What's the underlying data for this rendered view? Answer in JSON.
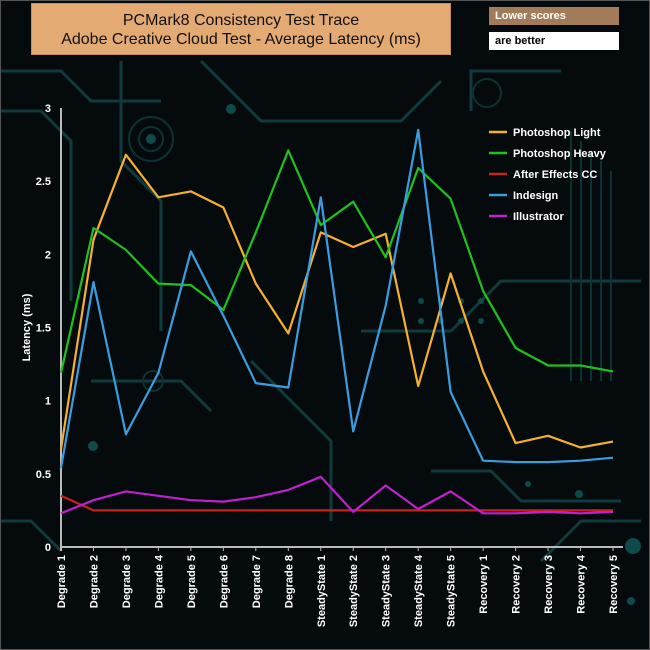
{
  "header": {
    "title_line1": "PCMark8 Consistency Test Trace",
    "title_line2": "Adobe Creative Cloud Test -  Average Latency (ms)",
    "note_line1": "Lower scores",
    "note_line2": "are better"
  },
  "chart_data": {
    "type": "line",
    "xlabel": "",
    "ylabel": "Latency (ms)",
    "ylim": [
      0,
      3
    ],
    "yticks": [
      "0",
      "0.5",
      "1",
      "1.5",
      "2",
      "2.5",
      "3"
    ],
    "legend_position": "top-right",
    "grid": false,
    "categories": [
      "Degrade 1",
      "Degrade 2",
      "Degrade 3",
      "Degrade 4",
      "Degrade 5",
      "Degrade 6",
      "Degrade 7",
      "Degrade 8",
      "SteadyState 1",
      "SteadyState 2",
      "SteadyState 3",
      "SteadyState 4",
      "SteadyState 5",
      "Recovery 1",
      "Recovery 2",
      "Recovery 3",
      "Recovery 4",
      "Recovery 5"
    ],
    "series": [
      {
        "name": "Photoshop Light",
        "color": "#f5b02e",
        "values": [
          0.67,
          2.1,
          2.68,
          2.39,
          2.43,
          2.32,
          1.8,
          1.46,
          2.15,
          2.05,
          2.14,
          1.1,
          1.87,
          1.2,
          0.71,
          0.76,
          0.68,
          0.72
        ]
      },
      {
        "name": " Photoshop Heavy",
        "color": "#1ec21e",
        "values": [
          1.19,
          2.18,
          2.03,
          1.8,
          1.79,
          1.62,
          2.15,
          2.71,
          2.2,
          2.36,
          1.98,
          2.59,
          2.38,
          1.75,
          1.36,
          1.24,
          1.24,
          1.2
        ]
      },
      {
        "name": "After Effects CC",
        "color": "#cc2020",
        "values": [
          0.35,
          0.25,
          0.25,
          0.25,
          0.25,
          0.25,
          0.25,
          0.25,
          0.25,
          0.25,
          0.25,
          0.25,
          0.25,
          0.25,
          0.25,
          0.25,
          0.25,
          0.25
        ]
      },
      {
        "name": "Indesign",
        "color": "#3a9de0",
        "values": [
          0.54,
          1.81,
          0.77,
          1.19,
          2.02,
          1.58,
          1.12,
          1.09,
          2.39,
          0.79,
          1.65,
          2.85,
          1.06,
          0.59,
          0.58,
          0.58,
          0.59,
          0.61
        ]
      },
      {
        "name": "Illustrator",
        "color": "#c020d0",
        "values": [
          0.23,
          0.32,
          0.38,
          0.35,
          0.32,
          0.31,
          0.34,
          0.39,
          0.48,
          0.24,
          0.42,
          0.26,
          0.38,
          0.23,
          0.23,
          0.24,
          0.23,
          0.24
        ]
      }
    ]
  }
}
